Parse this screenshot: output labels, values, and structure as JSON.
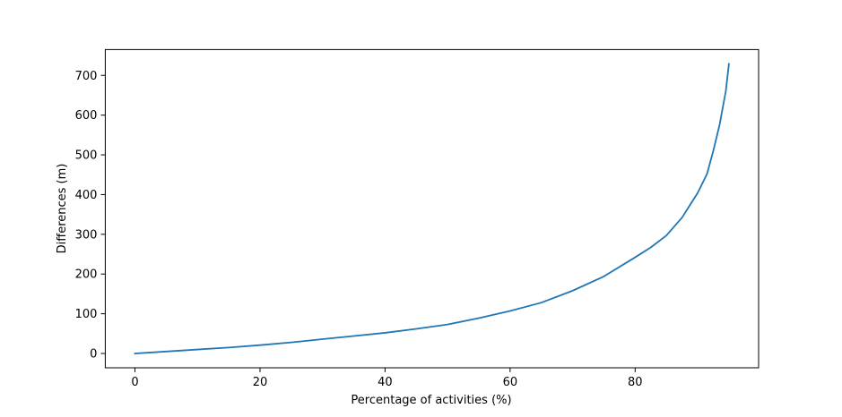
{
  "chart_data": {
    "type": "line",
    "title": "",
    "xlabel": "Percentage of activities (%)",
    "ylabel": "Differences (m)",
    "xlim": [
      -4.75,
      99.75
    ],
    "ylim": [
      -36,
      765
    ],
    "xticks": [
      0,
      20,
      40,
      60,
      80
    ],
    "yticks": [
      0,
      100,
      200,
      300,
      400,
      500,
      600,
      700
    ],
    "grid": false,
    "legend": "none",
    "series": [
      {
        "color": "#1f77b4",
        "x": [
          0,
          5,
          10,
          15,
          20,
          25,
          30,
          35,
          40,
          45,
          50,
          55,
          60,
          65,
          70,
          75,
          80,
          82.5,
          85,
          87.5,
          90,
          91.5,
          92.5,
          93.5,
          94.5,
          95
        ],
        "y": [
          0,
          5,
          10,
          15,
          21,
          28,
          36,
          44,
          52,
          62,
          73,
          89,
          107,
          128,
          158,
          194,
          242,
          267,
          297,
          342,
          404,
          452,
          510,
          575,
          660,
          729
        ]
      }
    ]
  }
}
